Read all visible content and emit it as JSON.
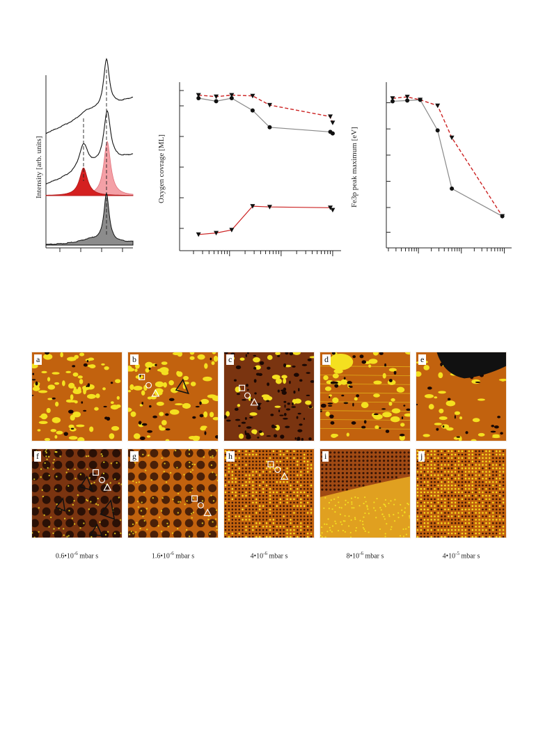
{
  "figure_top": {
    "panel1": {
      "ylabel": "Intensity [arb. units]"
    },
    "panel2": {
      "ylabel": "Oxygen covrage [ML]"
    },
    "panel3": {
      "ylabel": "Fe3p peak maximum [eV]"
    }
  },
  "chart_data": [
    {
      "type": "line",
      "title": "",
      "xlabel": "",
      "ylabel": "Intensity [arb. units]",
      "note": "three stacked spectra; middle spectrum shows two fitted components",
      "series": [
        {
          "name": "",
          "color": "#000000"
        },
        {
          "name": "",
          "color": "#000000",
          "components": [
            "#d42020",
            "#f4a0a6"
          ]
        },
        {
          "name": "",
          "color": "#000000",
          "fill": "#8c8c8c"
        }
      ]
    },
    {
      "type": "line",
      "title": "",
      "xlabel": "",
      "ylabel": "Oxygen covrage [ML]",
      "xscale": "log",
      "series": [
        {
          "name": "",
          "marker": "triangle-down",
          "color": "#cc2222",
          "style": "dashed",
          "x": [
            0.25,
            0.55,
            1.1,
            2.8,
            6,
            90,
            100
          ],
          "y": [
            0.97,
            0.96,
            0.97,
            0.965,
            0.905,
            0.83,
            0.79
          ]
        },
        {
          "name": "",
          "marker": "circle",
          "color": "#888888",
          "style": "solid",
          "x": [
            0.25,
            0.55,
            1.1,
            2.8,
            6,
            90,
            100
          ],
          "y": [
            0.95,
            0.93,
            0.95,
            0.87,
            0.76,
            0.73,
            0.72
          ]
        },
        {
          "name": "",
          "marker": "triangle-down",
          "color": "#cc2222",
          "style": "solid",
          "x": [
            0.25,
            0.55,
            1.1,
            2.8,
            6,
            90,
            100
          ],
          "y": [
            0.06,
            0.07,
            0.09,
            0.245,
            0.24,
            0.235,
            0.22
          ]
        }
      ]
    },
    {
      "type": "line",
      "title": "",
      "xlabel": "",
      "ylabel": "Fe3p peak maximum [eV]",
      "xscale": "log",
      "series": [
        {
          "name": "",
          "marker": "triangle-down",
          "color": "#cc2222",
          "style": "dashed",
          "x": [
            0.25,
            0.55,
            1.1,
            2.8,
            6,
            90
          ],
          "y": [
            0.97,
            0.98,
            0.96,
            0.92,
            0.7,
            0.16
          ]
        },
        {
          "name": "",
          "marker": "circle",
          "color": "#888888",
          "style": "solid",
          "x": [
            0.25,
            0.55,
            1.1,
            2.8,
            6,
            90
          ],
          "y": [
            0.95,
            0.955,
            0.96,
            0.75,
            0.35,
            0.16
          ]
        }
      ]
    }
  ],
  "stm_panels": [
    {
      "label": "a",
      "style": "speckle"
    },
    {
      "label": "b",
      "style": "speckle"
    },
    {
      "label": "c",
      "style": "dark-speckle"
    },
    {
      "label": "d",
      "style": "streak"
    },
    {
      "label": "e",
      "style": "dark-corner"
    },
    {
      "label": "f",
      "style": "lattice-dark"
    },
    {
      "label": "g",
      "style": "lattice-light"
    },
    {
      "label": "h",
      "style": "atomic"
    },
    {
      "label": "i",
      "style": "step"
    },
    {
      "label": "j",
      "style": "atomic-bright"
    }
  ],
  "captions": [
    {
      "mant": "0.6•10",
      "exp": "-6",
      "unit": " mbar s"
    },
    {
      "mant": "1.6•10",
      "exp": "-6",
      "unit": " mbar s"
    },
    {
      "mant": "4•10",
      "exp": "-6",
      "unit": " mbar s"
    },
    {
      "mant": "8•10",
      "exp": "-6",
      "unit": " mbar s"
    },
    {
      "mant": "4•10",
      "exp": "-5",
      "unit": " mbar s"
    }
  ],
  "colors": {
    "stm_dark": "#5a2a10",
    "stm_mid": "#c2620e",
    "stm_bright": "#f4e020",
    "red": "#cc2222",
    "gray": "#888888"
  }
}
